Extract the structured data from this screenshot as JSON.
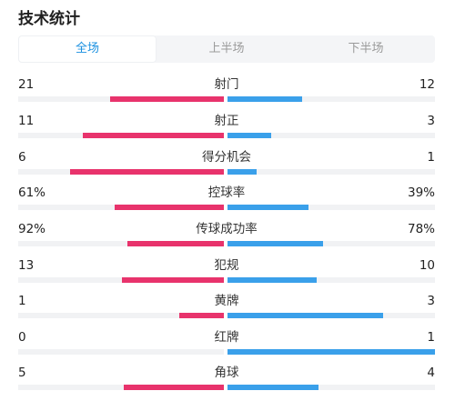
{
  "header": {
    "title": "技术统计"
  },
  "tabs": [
    {
      "label": "全场",
      "active": true
    },
    {
      "label": "上半场",
      "active": false
    },
    {
      "label": "下半场",
      "active": false
    }
  ],
  "colors": {
    "home": "#e8336c",
    "away": "#3aa0ea",
    "track": "#f1f2f4",
    "accent": "#1a90e0"
  },
  "stats": [
    {
      "label": "射门",
      "home": "21",
      "away": "12",
      "home_ratio": 0.64,
      "away_ratio": 0.36
    },
    {
      "label": "射正",
      "home": "11",
      "away": "3",
      "home_ratio": 0.79,
      "away_ratio": 0.21
    },
    {
      "label": "得分机会",
      "home": "6",
      "away": "1",
      "home_ratio": 0.86,
      "away_ratio": 0.14
    },
    {
      "label": "控球率",
      "home": "61%",
      "away": "39%",
      "home_ratio": 0.61,
      "away_ratio": 0.39
    },
    {
      "label": "传球成功率",
      "home": "92%",
      "away": "78%",
      "home_ratio": 0.54,
      "away_ratio": 0.46
    },
    {
      "label": "犯规",
      "home": "13",
      "away": "10",
      "home_ratio": 0.57,
      "away_ratio": 0.43
    },
    {
      "label": "黄牌",
      "home": "1",
      "away": "3",
      "home_ratio": 0.25,
      "away_ratio": 0.75
    },
    {
      "label": "红牌",
      "home": "0",
      "away": "1",
      "home_ratio": 0.0,
      "away_ratio": 1.0
    },
    {
      "label": "角球",
      "home": "5",
      "away": "4",
      "home_ratio": 0.56,
      "away_ratio": 0.44
    }
  ]
}
